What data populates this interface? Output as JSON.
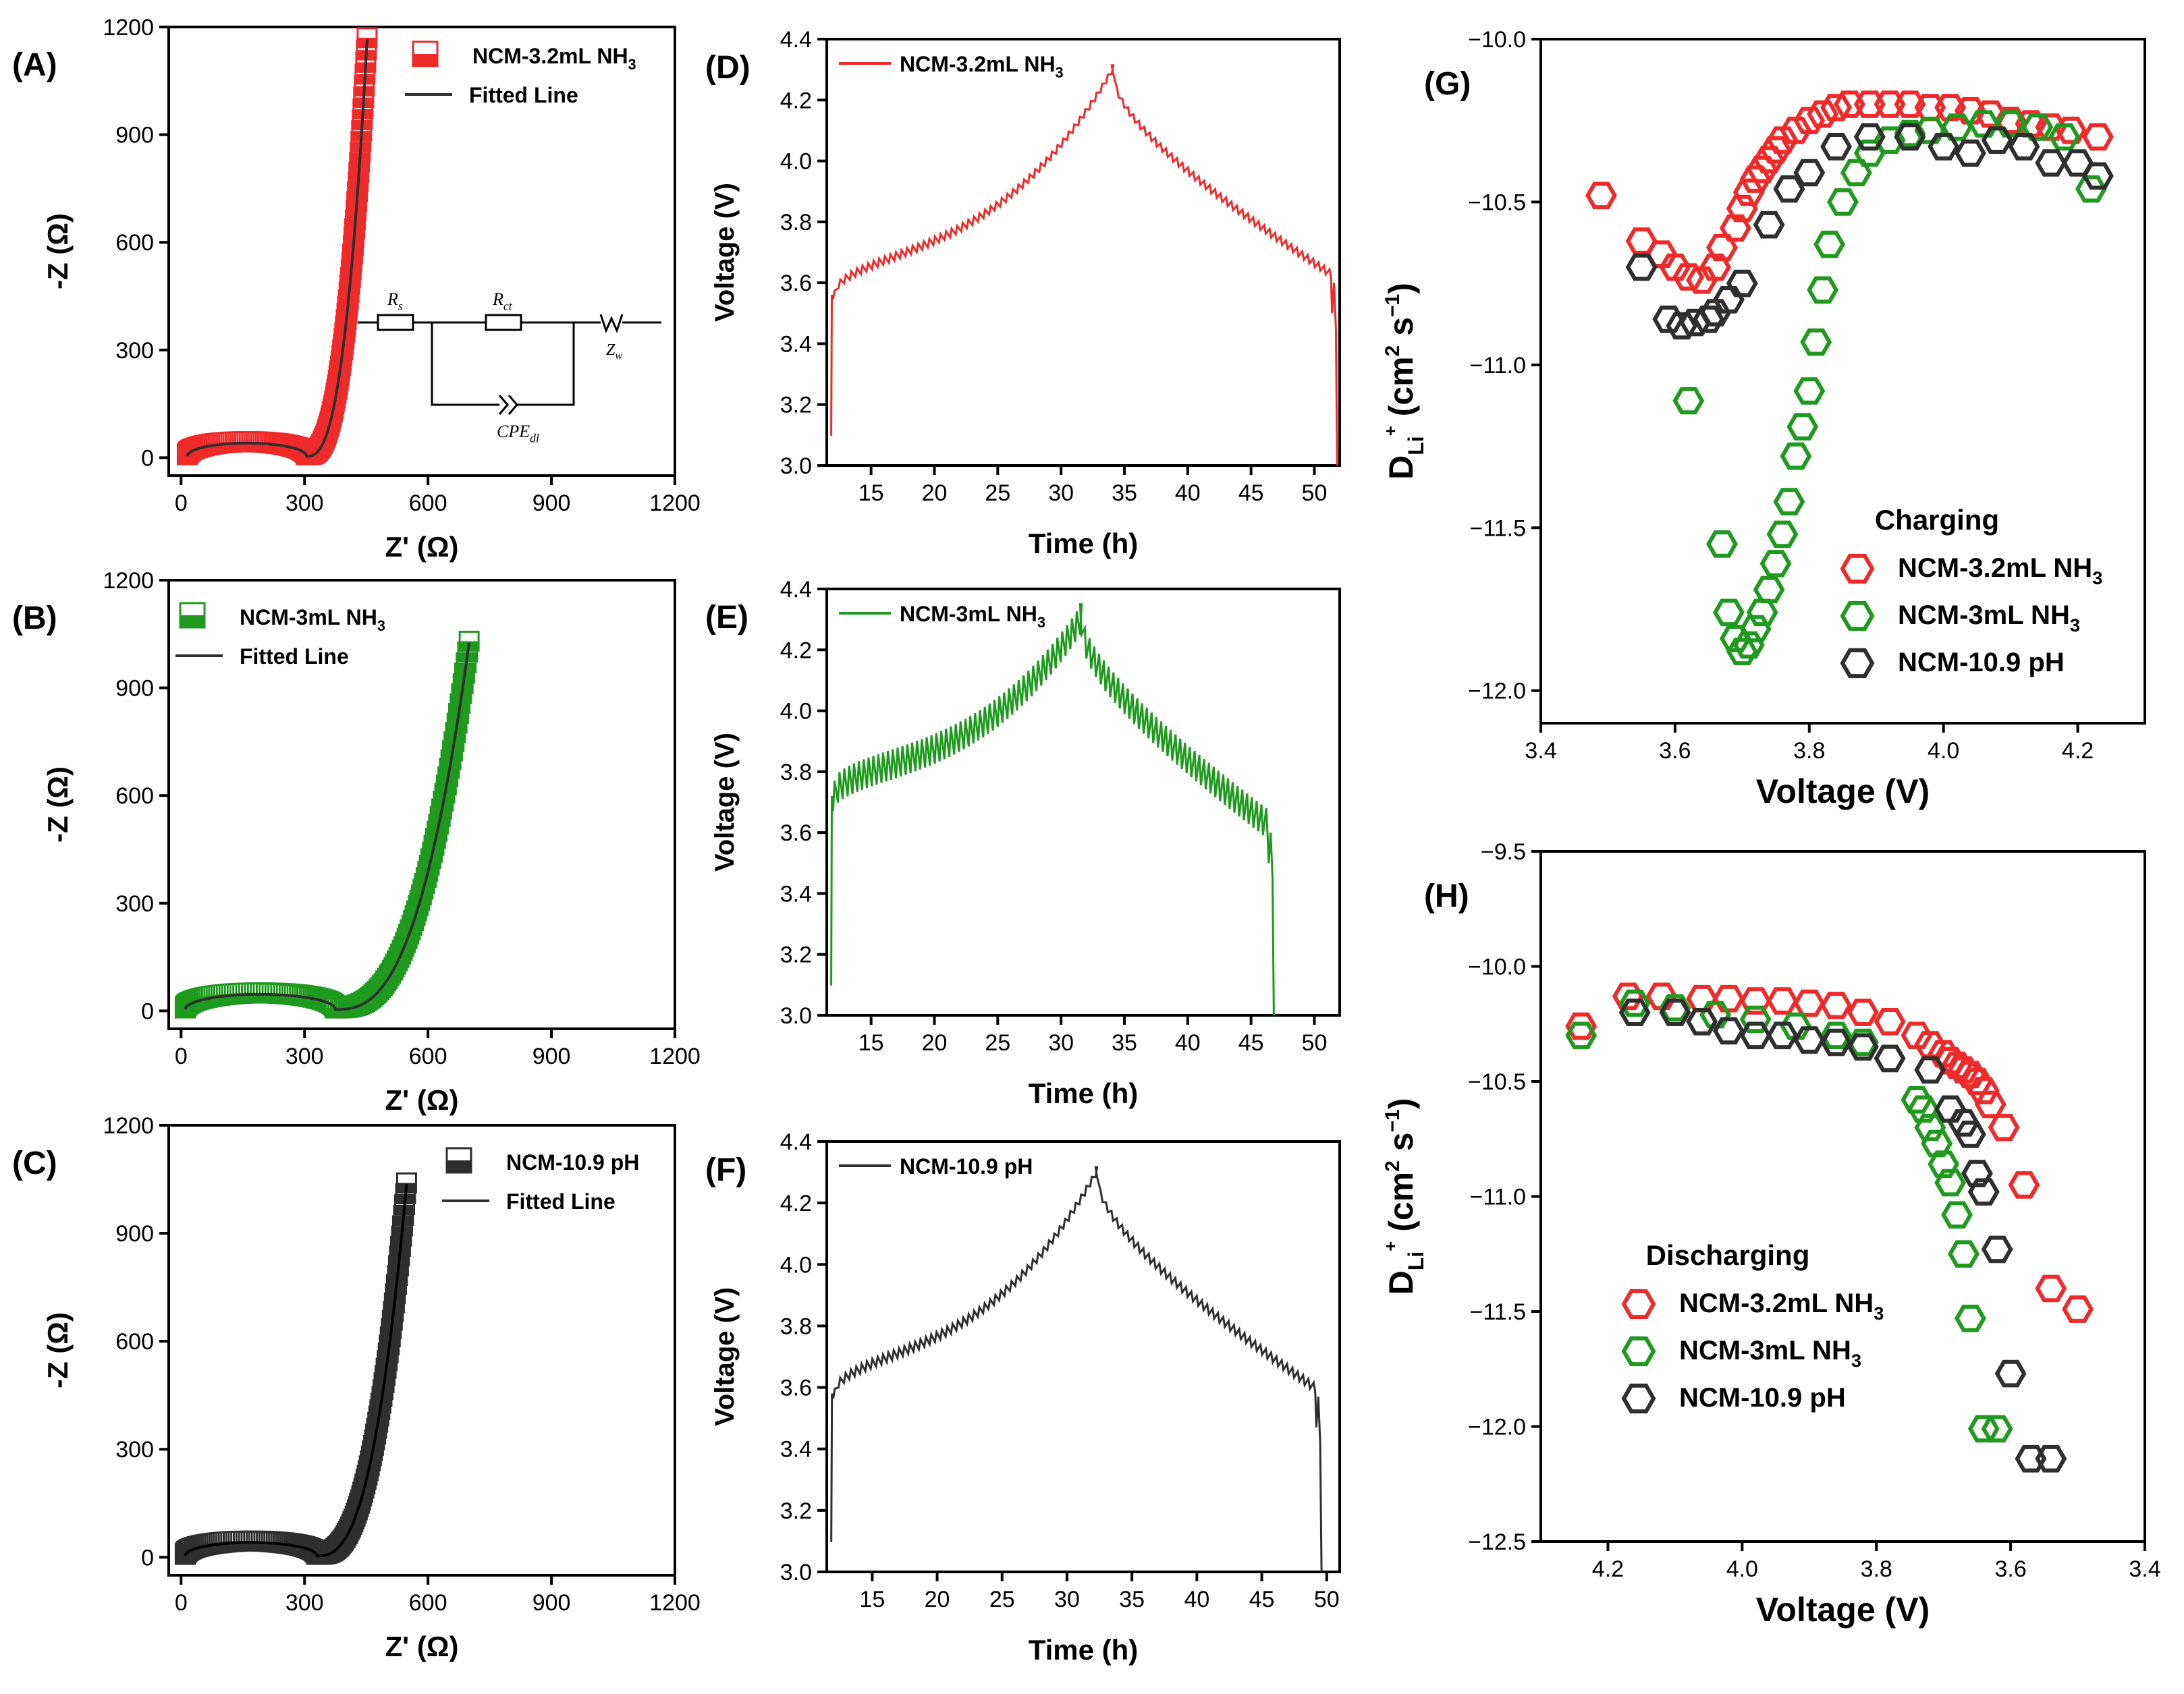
{
  "colors": {
    "red": "#ee2a2a",
    "green": "#1f9a1f",
    "black": "#2f2f2f"
  },
  "chart_data": [
    {
      "id": "A",
      "type": "scatter",
      "panel_label": "(A)",
      "xlabel": "Z' (Ω)",
      "ylabel": "-Z (Ω)",
      "xlim": [
        -30,
        1200
      ],
      "ylim": [
        -50,
        1200
      ],
      "xticks": [
        0,
        300,
        600,
        900,
        1200
      ],
      "yticks": [
        0,
        300,
        600,
        900,
        1200
      ],
      "series": [
        {
          "name": "NCM-3.2mL NH3",
          "color": "#ee2a2a",
          "marker": "half-square",
          "fit": {
            "rs": 15,
            "rct": 290,
            "k": 0.12,
            "xa": 395,
            "xb": 452,
            "amp": 1170
          }
        },
        {
          "name": "Fitted Line",
          "color": "#2f2f2f",
          "marker": "line"
        }
      ],
      "legend": [
        {
          "label": "NCM-3.2mL NH",
          "sub": "3"
        },
        {
          "label": "Fitted Line"
        }
      ],
      "inset": {
        "type": "circuit",
        "labels": {
          "rs": "R",
          "rs_sub": "s",
          "rct": "R",
          "rct_sub": "ct",
          "zw": "Z",
          "zw_sub": "w",
          "cpe": "CPE",
          "cpe_sub": "dl"
        }
      }
    },
    {
      "id": "B",
      "type": "scatter",
      "panel_label": "(B)",
      "xlabel": "Z' (Ω)",
      "ylabel": "-Z (Ω)",
      "xlim": [
        -30,
        1200
      ],
      "ylim": [
        -50,
        1200
      ],
      "xticks": [
        0,
        300,
        600,
        900,
        1200
      ],
      "yticks": [
        0,
        300,
        600,
        900,
        1200
      ],
      "series": [
        {
          "name": "NCM-3mL NH3",
          "color": "#1f9a1f",
          "marker": "half-square",
          "fit": {
            "rs": 10,
            "rct": 365,
            "k": 0.11,
            "xa": 440,
            "xb": 700,
            "amp": 1030
          }
        },
        {
          "name": "Fitted Line",
          "color": "#2f2f2f",
          "marker": "line"
        }
      ],
      "legend": [
        {
          "label": "NCM-3mL NH",
          "sub": "3"
        },
        {
          "label": "Fitted Line"
        }
      ]
    },
    {
      "id": "C",
      "type": "scatter",
      "panel_label": "(C)",
      "xlabel": "Z' (Ω)",
      "ylabel": "-Z (Ω)",
      "xlim": [
        -30,
        1200
      ],
      "ylim": [
        -50,
        1200
      ],
      "xticks": [
        0,
        300,
        600,
        900,
        1200
      ],
      "yticks": [
        0,
        300,
        600,
        900,
        1200
      ],
      "series": [
        {
          "name": "NCM-10.9 pH",
          "color": "#2f2f2f",
          "marker": "half-square",
          "fit": {
            "rs": 10,
            "rct": 320,
            "k": 0.11,
            "xa": 370,
            "xb": 548,
            "amp": 1040
          }
        },
        {
          "name": "Fitted Line",
          "color": "#000000",
          "marker": "line"
        }
      ],
      "legend": [
        {
          "label": "NCM-10.9 pH"
        },
        {
          "label": "Fitted Line"
        }
      ]
    },
    {
      "id": "D",
      "type": "line",
      "panel_label": "(D)",
      "xlabel": "Time (h)",
      "ylabel": "Voltage (V)",
      "xlim": [
        11.5,
        52
      ],
      "ylim": [
        3.0,
        4.4
      ],
      "xticks": [
        15,
        20,
        25,
        30,
        35,
        40,
        45,
        50
      ],
      "yticks": [
        3.0,
        3.2,
        3.4,
        3.6,
        3.8,
        4.0,
        4.2,
        4.4
      ],
      "series": [
        {
          "name": "NCM-3.2mL NH3",
          "color": "#ee2a2a",
          "start": 11.8,
          "peak": 34.0,
          "end": 51.8,
          "peak_v": 4.3,
          "charge_start_v": 3.56,
          "discharge_end_v": 3.55,
          "ripple": 0.014,
          "final_v": 3.0
        }
      ],
      "legend": [
        {
          "label": "NCM-3.2mL NH",
          "sub": "3"
        }
      ]
    },
    {
      "id": "E",
      "type": "line",
      "panel_label": "(E)",
      "xlabel": "Time (h)",
      "ylabel": "Voltage (V)",
      "xlim": [
        11.5,
        52
      ],
      "ylim": [
        3.0,
        4.4
      ],
      "xticks": [
        15,
        20,
        25,
        30,
        35,
        40,
        45,
        50
      ],
      "yticks": [
        3.0,
        3.2,
        3.4,
        3.6,
        3.8,
        4.0,
        4.2,
        4.4
      ],
      "series": [
        {
          "name": "NCM-3mL NH3",
          "color": "#1f9a1f",
          "start": 11.8,
          "peak": 31.5,
          "end": 46.8,
          "peak_v": 4.3,
          "charge_start_v": 3.72,
          "discharge_end_v": 3.55,
          "ripple": 0.05,
          "final_v": 3.0
        }
      ],
      "legend": [
        {
          "label": "NCM-3mL NH",
          "sub": "3"
        }
      ]
    },
    {
      "id": "F",
      "type": "line",
      "panel_label": "(F)",
      "xlabel": "Time (h)",
      "ylabel": "Voltage (V)",
      "xlim": [
        11.5,
        51
      ],
      "ylim": [
        3.0,
        4.4
      ],
      "xticks": [
        15,
        20,
        25,
        30,
        35,
        40,
        45,
        50
      ],
      "yticks": [
        3.0,
        3.2,
        3.4,
        3.6,
        3.8,
        4.0,
        4.2,
        4.4
      ],
      "series": [
        {
          "name": "NCM-10.9 pH",
          "color": "#2f2f2f",
          "start": 11.8,
          "peak": 32.2,
          "end": 49.6,
          "peak_v": 4.3,
          "charge_start_v": 3.58,
          "discharge_end_v": 3.52,
          "ripple": 0.016,
          "final_v": 3.0
        }
      ],
      "legend": [
        {
          "label": "NCM-10.9 pH"
        }
      ]
    },
    {
      "id": "G",
      "type": "scatter",
      "panel_label": "(G)",
      "title": "Charging",
      "xlabel": "Voltage (V)",
      "ylabel": "D_Li+ (cm2 s-1)",
      "xlim": [
        3.4,
        4.3
      ],
      "ylim": [
        -12.1,
        -10.0
      ],
      "xticks": [
        3.4,
        3.6,
        3.8,
        4.0,
        4.2
      ],
      "yticks": [
        -12.0,
        -11.5,
        -11.0,
        -10.5,
        -10.0
      ],
      "series": [
        {
          "name": "NCM-3.2mL NH3",
          "color": "#ee2a2a",
          "x": [
            3.49,
            3.55,
            3.58,
            3.6,
            3.62,
            3.64,
            3.66,
            3.67,
            3.69,
            3.7,
            3.71,
            3.72,
            3.73,
            3.74,
            3.75,
            3.76,
            3.78,
            3.8,
            3.82,
            3.84,
            3.86,
            3.89,
            3.92,
            3.95,
            3.98,
            4.01,
            4.04,
            4.07,
            4.1,
            4.13,
            4.16,
            4.19,
            4.23
          ],
          "y": [
            -10.48,
            -10.62,
            -10.66,
            -10.7,
            -10.73,
            -10.74,
            -10.7,
            -10.64,
            -10.58,
            -10.52,
            -10.47,
            -10.43,
            -10.4,
            -10.37,
            -10.34,
            -10.31,
            -10.28,
            -10.25,
            -10.23,
            -10.21,
            -10.2,
            -10.2,
            -10.2,
            -10.2,
            -10.21,
            -10.21,
            -10.22,
            -10.23,
            -10.25,
            -10.26,
            -10.27,
            -10.28,
            -10.3
          ]
        },
        {
          "name": "NCM-3mL NH3",
          "color": "#1f9a1f",
          "x": [
            3.62,
            3.67,
            3.68,
            3.69,
            3.7,
            3.71,
            3.72,
            3.73,
            3.74,
            3.75,
            3.76,
            3.77,
            3.78,
            3.79,
            3.8,
            3.81,
            3.82,
            3.83,
            3.85,
            3.87,
            3.89,
            3.92,
            3.95,
            3.98,
            4.02,
            4.06,
            4.1,
            4.14,
            4.18,
            4.22
          ],
          "y": [
            -11.11,
            -11.55,
            -11.76,
            -11.84,
            -11.88,
            -11.86,
            -11.81,
            -11.76,
            -11.69,
            -11.61,
            -11.52,
            -11.42,
            -11.28,
            -11.19,
            -11.08,
            -10.93,
            -10.77,
            -10.63,
            -10.5,
            -10.41,
            -10.35,
            -10.31,
            -10.29,
            -10.28,
            -10.27,
            -10.26,
            -10.26,
            -10.27,
            -10.3,
            -10.46
          ]
        },
        {
          "name": "NCM-10.9 pH",
          "color": "#2f2f2f",
          "x": [
            3.55,
            3.59,
            3.61,
            3.63,
            3.65,
            3.66,
            3.68,
            3.7,
            3.74,
            3.77,
            3.8,
            3.84,
            3.89,
            3.95,
            4.0,
            4.04,
            4.08,
            4.12,
            4.16,
            4.2,
            4.23
          ],
          "y": [
            -10.7,
            -10.86,
            -10.88,
            -10.87,
            -10.86,
            -10.84,
            -10.8,
            -10.75,
            -10.57,
            -10.46,
            -10.41,
            -10.33,
            -10.3,
            -10.3,
            -10.33,
            -10.35,
            -10.31,
            -10.33,
            -10.38,
            -10.38,
            -10.42
          ]
        }
      ],
      "legend": [
        {
          "label": "NCM-3.2mL NH",
          "sub": "3"
        },
        {
          "label": "NCM-3mL NH",
          "sub": "3"
        },
        {
          "label": "NCM-10.9 pH"
        }
      ]
    },
    {
      "id": "H",
      "type": "scatter",
      "panel_label": "(H)",
      "title": "Discharging",
      "xlabel": "Voltage (V)",
      "ylabel": "D_Li+ (cm2 s-1)",
      "xlim": [
        4.3,
        3.4
      ],
      "ylim": [
        -12.5,
        -9.5
      ],
      "xticks": [
        4.2,
        4.0,
        3.8,
        3.6,
        3.4
      ],
      "yticks": [
        -12.5,
        -12.0,
        -11.5,
        -11.0,
        -10.5,
        -10.0,
        -9.5
      ],
      "series": [
        {
          "name": "NCM-3.2mL NH3",
          "color": "#ee2a2a",
          "x": [
            4.24,
            4.17,
            4.12,
            4.06,
            4.02,
            3.98,
            3.94,
            3.9,
            3.86,
            3.82,
            3.78,
            3.74,
            3.72,
            3.7,
            3.69,
            3.68,
            3.67,
            3.66,
            3.65,
            3.64,
            3.63,
            3.61,
            3.58,
            3.54,
            3.5
          ],
          "y": [
            -10.26,
            -10.13,
            -10.13,
            -10.14,
            -10.14,
            -10.15,
            -10.15,
            -10.16,
            -10.17,
            -10.2,
            -10.24,
            -10.3,
            -10.34,
            -10.38,
            -10.41,
            -10.43,
            -10.45,
            -10.47,
            -10.5,
            -10.54,
            -10.6,
            -10.7,
            -10.95,
            -11.4,
            -11.49
          ]
        },
        {
          "name": "NCM-3mL NH3",
          "color": "#1f9a1f",
          "x": [
            4.24,
            4.16,
            4.1,
            4.04,
            3.98,
            3.92,
            3.86,
            3.82,
            3.78,
            3.74,
            3.73,
            3.72,
            3.71,
            3.7,
            3.69,
            3.68,
            3.67,
            3.66,
            3.64,
            3.62
          ],
          "y": [
            -10.3,
            -10.16,
            -10.18,
            -10.21,
            -10.23,
            -10.26,
            -10.3,
            -10.33,
            -10.4,
            -10.58,
            -10.62,
            -10.7,
            -10.77,
            -10.86,
            -10.94,
            -11.08,
            -11.25,
            -11.53,
            -12.01,
            -12.01
          ]
        },
        {
          "name": "NCM-10.9 pH",
          "color": "#2f2f2f",
          "x": [
            4.16,
            4.1,
            4.06,
            4.02,
            3.98,
            3.94,
            3.9,
            3.86,
            3.82,
            3.78,
            3.72,
            3.69,
            3.67,
            3.66,
            3.65,
            3.64,
            3.62,
            3.6,
            3.57,
            3.54
          ],
          "y": [
            -10.2,
            -10.2,
            -10.24,
            -10.28,
            -10.3,
            -10.3,
            -10.32,
            -10.33,
            -10.35,
            -10.4,
            -10.45,
            -10.62,
            -10.68,
            -10.73,
            -10.9,
            -10.98,
            -11.23,
            -11.77,
            -12.14,
            -12.14
          ]
        }
      ],
      "legend": [
        {
          "label": "NCM-3.2mL NH",
          "sub": "3"
        },
        {
          "label": "NCM-3mL NH",
          "sub": "3"
        },
        {
          "label": "NCM-10.9 pH"
        }
      ]
    }
  ]
}
